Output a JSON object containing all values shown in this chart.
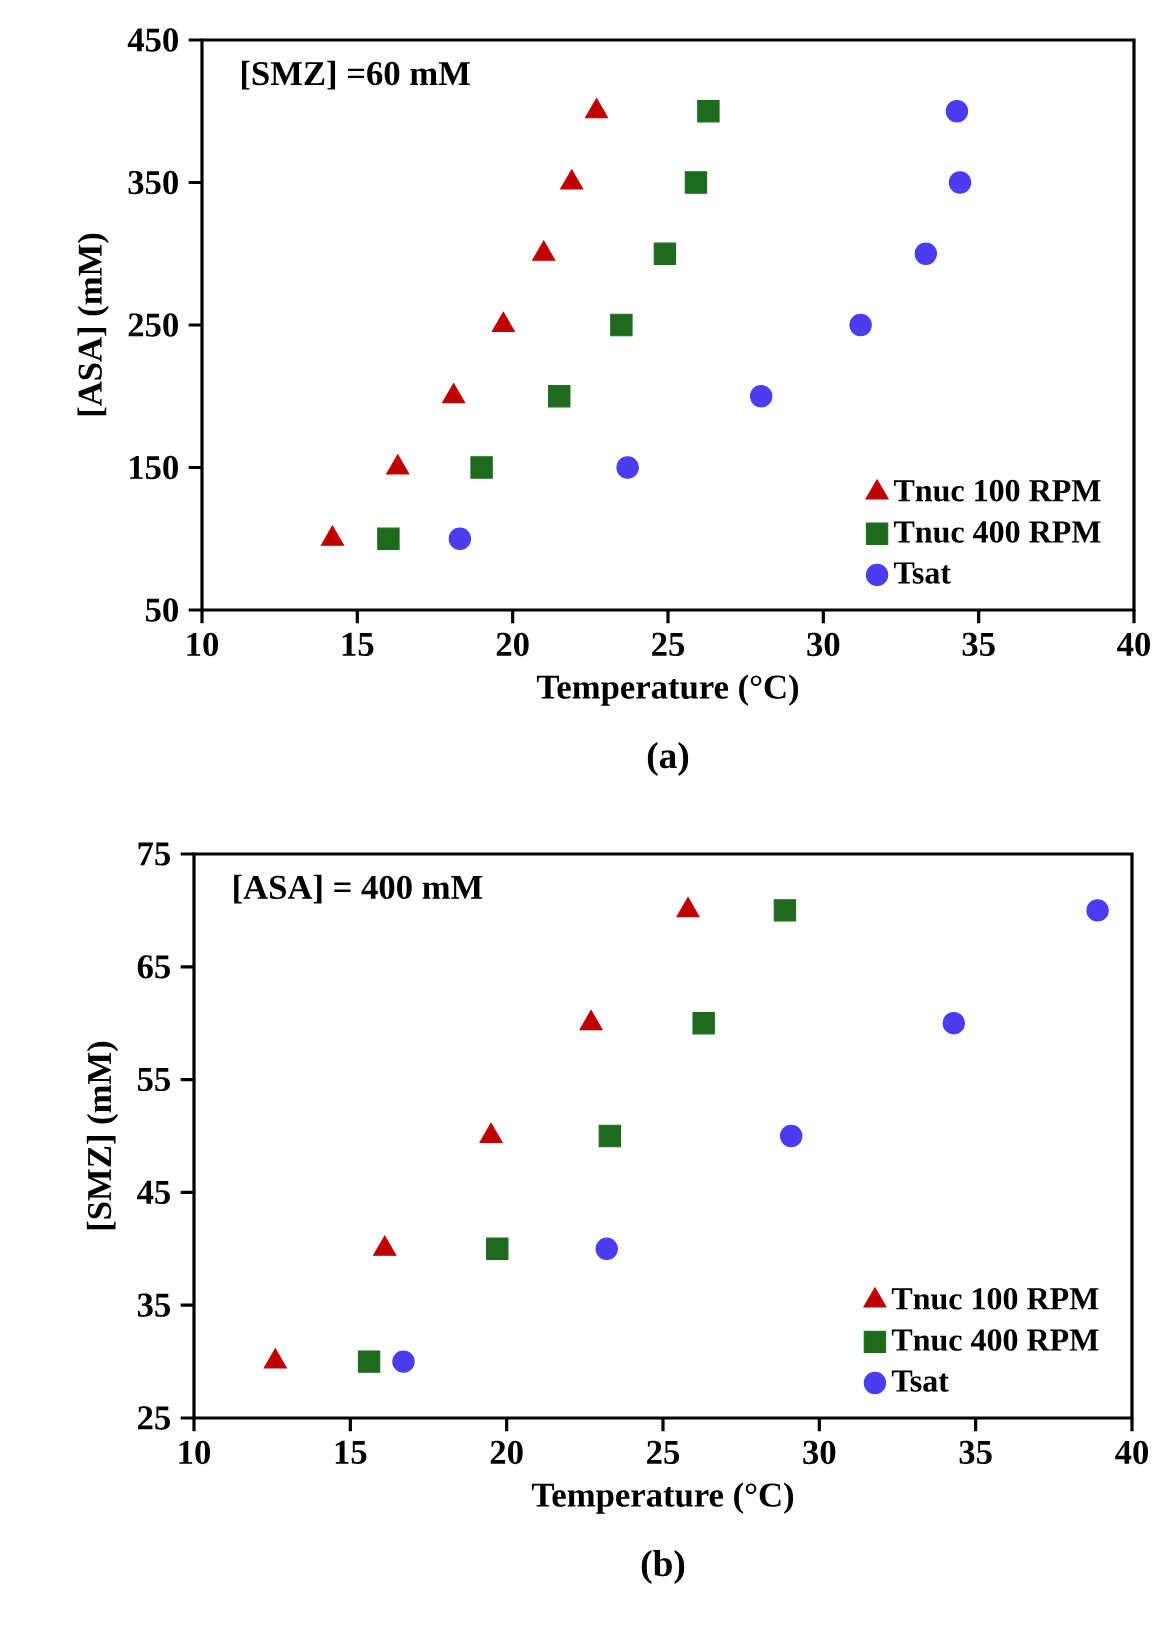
{
  "chart_data": [
    {
      "type": "scatter",
      "xlabel": "Temperature (°C)",
      "ylabel": "[ASA] (mM)",
      "annotations": [
        "[SMZ] =60 mM",
        "(a)"
      ],
      "xlim": [
        10,
        40
      ],
      "xticks": [
        10,
        15,
        20,
        25,
        30,
        35,
        40
      ],
      "ylim": [
        50,
        450
      ],
      "yticks": [
        50,
        150,
        250,
        350,
        450
      ],
      "legend": "bottom right",
      "grid": false,
      "series": [
        {
          "name": "Tnuc 100 RPM",
          "color": "#c00000",
          "marker": "triangle",
          "x": [
            14.2,
            16.3,
            18.1,
            19.7,
            21.0,
            21.9,
            22.7
          ],
          "values": [
            100,
            150,
            200,
            250,
            300,
            350,
            400
          ]
        },
        {
          "name": "Tnuc 400 RPM",
          "color": "#1e6b1e",
          "marker": "square",
          "x": [
            16.0,
            19.0,
            21.5,
            23.5,
            24.9,
            25.9,
            26.3
          ],
          "values": [
            100,
            150,
            200,
            250,
            300,
            350,
            400
          ]
        },
        {
          "name": "Tsat",
          "color": "#4a3cf0",
          "marker": "circle",
          "x": [
            18.3,
            23.7,
            28.0,
            31.2,
            33.3,
            34.4,
            34.3
          ],
          "values": [
            100,
            150,
            200,
            250,
            300,
            350,
            400
          ]
        }
      ]
    },
    {
      "type": "scatter",
      "xlabel": "Temperature (°C)",
      "ylabel": "[SMZ] (mM)",
      "annotations": [
        "[ASA] = 400 mM",
        "(b)"
      ],
      "xlim": [
        10,
        40
      ],
      "xticks": [
        10,
        15,
        20,
        25,
        30,
        35,
        40
      ],
      "ylim": [
        25,
        75
      ],
      "yticks": [
        25,
        35,
        45,
        55,
        65,
        75
      ],
      "legend": "bottom right",
      "grid": false,
      "series": [
        {
          "name": "Tnuc 100 RPM",
          "color": "#c00000",
          "marker": "triangle",
          "x": [
            12.6,
            16.1,
            19.5,
            22.7,
            25.8
          ],
          "values": [
            30,
            40,
            50,
            60,
            70
          ]
        },
        {
          "name": "Tnuc 400 RPM",
          "color": "#1e6b1e",
          "marker": "square",
          "x": [
            15.6,
            19.7,
            23.3,
            26.3,
            28.9
          ],
          "values": [
            30,
            40,
            50,
            60,
            70
          ]
        },
        {
          "name": "Tsat",
          "color": "#4a3cf0",
          "marker": "circle",
          "x": [
            16.7,
            23.2,
            29.1,
            34.3,
            38.9
          ],
          "values": [
            30,
            40,
            50,
            60,
            70
          ]
        }
      ]
    }
  ]
}
